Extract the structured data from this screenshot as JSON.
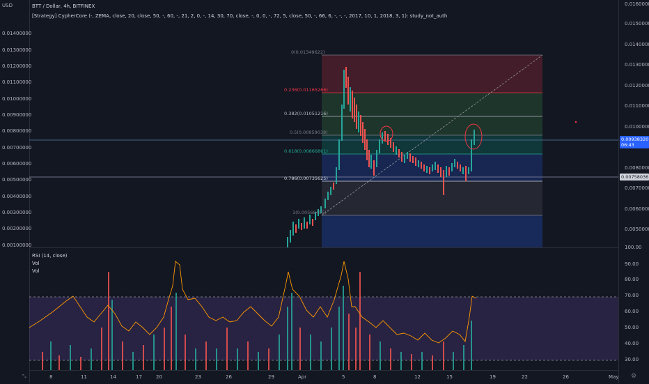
{
  "header": {
    "currency": "USD",
    "symbol_line": "BTT / Dollar, 4h, BITFINEX",
    "strategy_line": "[Strategy] CypherCore (-, ZEMA, close, 20, close, 50, -, 60, -, 21, 2, 0, -, 14, 30, 70, close, -, 0, 0, -, 72, 5, close, 50, -, 66, 6, -, -, -, 2017, 10, 1, 2018, 3, 1): study_not_auth"
  },
  "left_scale": [
    "0.01400000",
    "0.01300000",
    "0.01200000",
    "0.01100000",
    "0.01000000",
    "0.00900000",
    "0.00800000",
    "0.00700000",
    "0.00600000",
    "0.00500000",
    "0.00400000",
    "0.00300000",
    "0.00200000",
    "0.00100000"
  ],
  "right_scale": [
    "0.01600000",
    "0.01500000",
    "0.01400000",
    "0.01300000",
    "0.01200000",
    "0.01100000",
    "0.01000000",
    "0.00800000",
    "0.00700000",
    "0.00600000",
    "0.00500000"
  ],
  "right_scale_top": "0.01600000",
  "price_badge": {
    "price": "0.00938320",
    "countdown": "06:43"
  },
  "second_badge": "0.00758036",
  "fib_levels": [
    {
      "label": "0(0.01349622)",
      "color": "#787b86"
    },
    {
      "label": "0.236(0.01165266)",
      "color": "#f23645"
    },
    {
      "label": "0.382(0.01051216)",
      "color": "#b2b5be"
    },
    {
      "label": "0.5(0.00959038)",
      "color": "#787b86"
    },
    {
      "label": "0.618(0.00866861)",
      "color": "#22ab94"
    },
    {
      "label": "0.786(0.00735625)",
      "color": "#d1d4dc"
    },
    {
      "label": "1(0.00568455)",
      "color": "#787b86"
    }
  ],
  "rsi": {
    "title": "RSI (14, close)",
    "vol1": "Vol",
    "vol2": "Vol",
    "scale": [
      "100.00",
      "90.00",
      "80.00",
      "70.00",
      "60.00",
      "50.00",
      "40.00",
      "30.00"
    ],
    "current": "70.00"
  },
  "dates": [
    "8",
    "11",
    "14",
    "17",
    "20",
    "23",
    "26",
    "29",
    "Apr",
    "5",
    "8",
    "12",
    "15",
    "19",
    "22",
    "26",
    "May"
  ],
  "zoom_icon": "zoom-icon",
  "settings_icon": "gear-icon"
}
